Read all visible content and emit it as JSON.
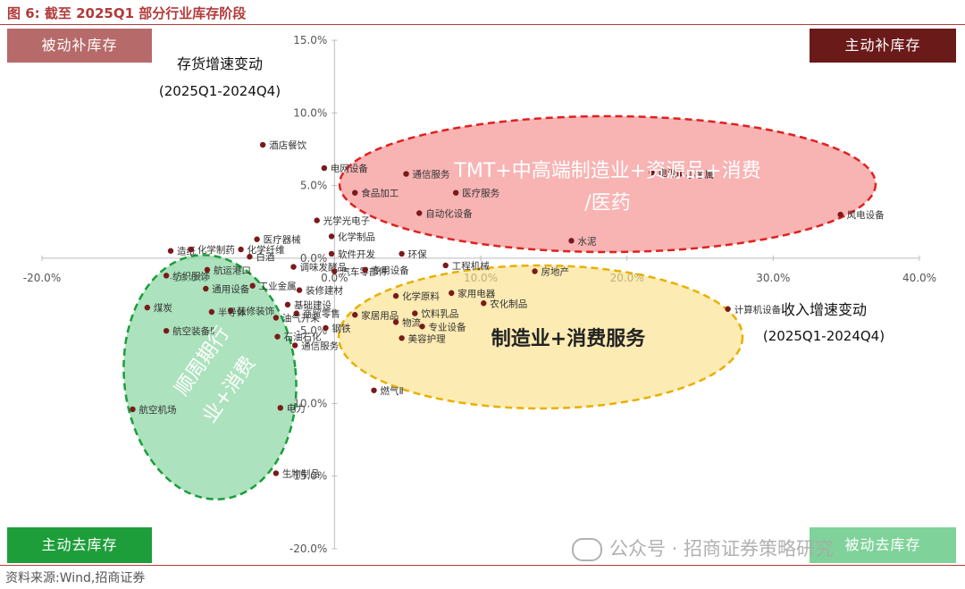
{
  "figure_title": "图 6:  截至 2025Q1 部分行业库存阶段",
  "source": "资料来源:Wind,招商证券",
  "watermark": "公众号 · 招商证券策略研究",
  "quadrants": {
    "top_left": {
      "label": "被动补库存",
      "color": "#b76a6a"
    },
    "top_right": {
      "label": "主动补库存",
      "color": "#6b1a1a"
    },
    "bottom_left": {
      "label": "主动去库存",
      "color": "#1e9e3a"
    },
    "bottom_right": {
      "label": "被动去库存",
      "color": "#7fd39a"
    }
  },
  "y_axis_title": [
    "存货增速变动",
    "(2025Q1-2024Q4)"
  ],
  "x_axis_title": [
    "收入增速变动",
    "(2025Q1-2024Q4)"
  ],
  "groups": [
    {
      "label": [
        "TMT+中高端制造业+资源品+消费",
        "/医药"
      ],
      "fill": "#f48a8a",
      "stroke": "#e02020"
    },
    {
      "label": [
        "制造业+消费服务"
      ],
      "fill": "#fbe08a",
      "stroke": "#e8b000"
    },
    {
      "label": [
        "顺周期行",
        "业+消费"
      ],
      "fill": "#7fd39a",
      "stroke": "#1a9e3a"
    }
  ],
  "chart_data": {
    "type": "scatter",
    "xlim": [
      -0.2,
      0.4
    ],
    "ylim": [
      -0.2,
      0.15
    ],
    "x_ticks": [
      -0.2,
      -0.1,
      0.0,
      0.1,
      0.2,
      0.3,
      0.4
    ],
    "y_ticks": [
      -0.2,
      -0.15,
      -0.1,
      -0.05,
      0.0,
      0.05,
      0.1,
      0.15
    ],
    "x_tick_labels": [
      "-20.0%",
      "-10.0%",
      "0.0%",
      "10.0%",
      "20.0%",
      "30.0%",
      "40.0%"
    ],
    "y_tick_labels": [
      "-20.0%",
      "-15.0%",
      "-10.0%",
      "-5.0%",
      "0.0%",
      "5.0%",
      "10.0%",
      "15.0%"
    ],
    "point_color": "#7a1a1a",
    "points": [
      {
        "name": "酒店餐饮",
        "x": -0.049,
        "y": 0.078
      },
      {
        "name": "电网设备",
        "x": -0.007,
        "y": 0.062
      },
      {
        "name": "通信服务",
        "x": 0.049,
        "y": 0.058
      },
      {
        "name": "食品加工",
        "x": 0.014,
        "y": 0.045
      },
      {
        "name": "医疗服务",
        "x": 0.083,
        "y": 0.045
      },
      {
        "name": "自动化设备",
        "x": 0.058,
        "y": 0.031
      },
      {
        "name": "光学光电子",
        "x": -0.012,
        "y": 0.026
      },
      {
        "name": "化学制品",
        "x": -0.002,
        "y": 0.015
      },
      {
        "name": "医疗器械",
        "x": -0.053,
        "y": 0.013
      },
      {
        "name": "造纸",
        "x": -0.112,
        "y": 0.005
      },
      {
        "name": "化学制药",
        "x": -0.098,
        "y": 0.006
      },
      {
        "name": "化学纤维",
        "x": -0.064,
        "y": 0.006
      },
      {
        "name": "白酒",
        "x": -0.058,
        "y": 0.001
      },
      {
        "name": "软件开发",
        "x": -0.002,
        "y": 0.003
      },
      {
        "name": "环保",
        "x": 0.046,
        "y": 0.003
      },
      {
        "name": "纺织服饰",
        "x": -0.115,
        "y": -0.012
      },
      {
        "name": "航运港口",
        "x": -0.087,
        "y": -0.008
      },
      {
        "name": "调味发酵品",
        "x": -0.028,
        "y": -0.006
      },
      {
        "name": "汽车零部件",
        "x": 0.0,
        "y": -0.009
      },
      {
        "name": "专用设备",
        "x": 0.021,
        "y": -0.008
      },
      {
        "name": "工程机械",
        "x": 0.076,
        "y": -0.005
      },
      {
        "name": "房地产",
        "x": 0.137,
        "y": -0.009
      },
      {
        "name": "电池",
        "x": 0.217,
        "y": 0.059
      },
      {
        "name": "小金属",
        "x": 0.236,
        "y": 0.058
      },
      {
        "name": "风电设备",
        "x": 0.346,
        "y": 0.03
      },
      {
        "name": "水泥",
        "x": 0.162,
        "y": 0.012
      },
      {
        "name": "通用设备",
        "x": -0.088,
        "y": -0.021
      },
      {
        "name": "工业金属",
        "x": -0.056,
        "y": -0.019
      },
      {
        "name": "装修建材",
        "x": -0.024,
        "y": -0.022
      },
      {
        "name": "基础建设",
        "x": -0.032,
        "y": -0.032
      },
      {
        "name": "煤炭",
        "x": -0.128,
        "y": -0.034
      },
      {
        "name": "装修装饰",
        "x": -0.071,
        "y": -0.036
      },
      {
        "name": "半导体",
        "x": -0.084,
        "y": -0.037
      },
      {
        "name": "商贸零售",
        "x": -0.026,
        "y": -0.038
      },
      {
        "name": "家居用品",
        "x": 0.014,
        "y": -0.039
      },
      {
        "name": "化学原料",
        "x": 0.042,
        "y": -0.026
      },
      {
        "name": "家用电器",
        "x": 0.08,
        "y": -0.024
      },
      {
        "name": "农化制品",
        "x": 0.102,
        "y": -0.031
      },
      {
        "name": "饮料乳品",
        "x": 0.055,
        "y": -0.038
      },
      {
        "name": "计算机设备",
        "x": 0.269,
        "y": -0.035
      },
      {
        "name": "航空装备Ⅱ",
        "x": -0.115,
        "y": -0.05
      },
      {
        "name": "钢铁",
        "x": -0.006,
        "y": -0.048
      },
      {
        "name": "专业设备",
        "x": 0.06,
        "y": -0.047
      },
      {
        "name": "物流",
        "x": 0.042,
        "y": -0.044
      },
      {
        "name": "油气开采",
        "x": -0.04,
        "y": -0.041
      },
      {
        "name": "美容护理",
        "x": 0.046,
        "y": -0.055
      },
      {
        "name": "石油石化",
        "x": -0.039,
        "y": -0.054
      },
      {
        "name": "通信服务",
        "x": -0.027,
        "y": -0.06
      },
      {
        "name": "燃气Ⅱ",
        "x": 0.027,
        "y": -0.091
      },
      {
        "name": "航空机场",
        "x": -0.138,
        "y": -0.104
      },
      {
        "name": "电力",
        "x": -0.037,
        "y": -0.103
      },
      {
        "name": "生物制品",
        "x": -0.04,
        "y": -0.148
      }
    ]
  }
}
